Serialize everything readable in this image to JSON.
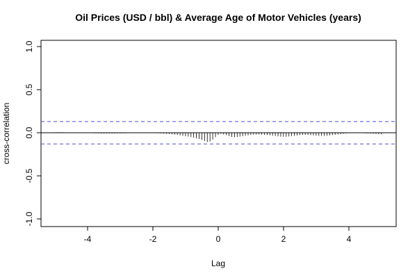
{
  "chart_data": {
    "type": "bar",
    "title": "Oil Prices (USD / bbl) & Average Age of Motor Vehicles (years)",
    "xlabel": "Lag",
    "ylabel": "cross-correlation",
    "xlim": [
      -5.25,
      5.25
    ],
    "ylim": [
      -1.0,
      1.0
    ],
    "x_ticks": [
      -4,
      -2,
      0,
      2,
      4
    ],
    "x_tick_labels": [
      "-4",
      "-2",
      "0",
      "2",
      "4"
    ],
    "y_ticks": [
      -1.0,
      -0.5,
      0.0,
      0.5,
      1.0
    ],
    "y_tick_labels": [
      "-1.0",
      "-0.5",
      "0.0",
      "0.5",
      "1.0"
    ],
    "confidence_band": 0.13,
    "confidence_color": "#4B4BDB",
    "line_color": "#000000",
    "grid": false,
    "lag_step": 0.0833,
    "lag_start": -5.0,
    "values": [
      0.005,
      0.006,
      0.007,
      0.006,
      0.005,
      0.004,
      0.004,
      0.003,
      0.002,
      0.001,
      -0.001,
      -0.002,
      -0.003,
      -0.004,
      -0.005,
      -0.006,
      -0.007,
      -0.008,
      -0.008,
      -0.008,
      -0.008,
      -0.008,
      -0.008,
      -0.007,
      -0.007,
      -0.006,
      -0.006,
      -0.005,
      -0.004,
      -0.004,
      -0.003,
      -0.003,
      -0.003,
      -0.003,
      -0.003,
      -0.004,
      -0.004,
      -0.005,
      -0.006,
      -0.008,
      -0.01,
      -0.012,
      -0.015,
      -0.018,
      -0.022,
      -0.026,
      -0.03,
      -0.035,
      -0.04,
      -0.045,
      -0.05,
      -0.057,
      -0.065,
      -0.073,
      -0.083,
      -0.095,
      -0.107,
      -0.1,
      -0.08,
      -0.05,
      -0.025,
      -0.012,
      -0.02,
      -0.028,
      -0.038,
      -0.048,
      -0.052,
      -0.049,
      -0.045,
      -0.04,
      -0.035,
      -0.03,
      -0.026,
      -0.023,
      -0.021,
      -0.02,
      -0.021,
      -0.023,
      -0.026,
      -0.03,
      -0.034,
      -0.038,
      -0.042,
      -0.045,
      -0.047,
      -0.046,
      -0.043,
      -0.039,
      -0.035,
      -0.031,
      -0.028,
      -0.026,
      -0.025,
      -0.026,
      -0.028,
      -0.031,
      -0.034,
      -0.036,
      -0.037,
      -0.036,
      -0.034,
      -0.031,
      -0.028,
      -0.024,
      -0.02,
      -0.016,
      -0.012,
      -0.008,
      -0.005,
      -0.003,
      -0.002,
      -0.002,
      -0.003,
      -0.004,
      -0.006,
      -0.008,
      -0.01,
      -0.012,
      -0.014,
      -0.016,
      -0.018
    ]
  }
}
